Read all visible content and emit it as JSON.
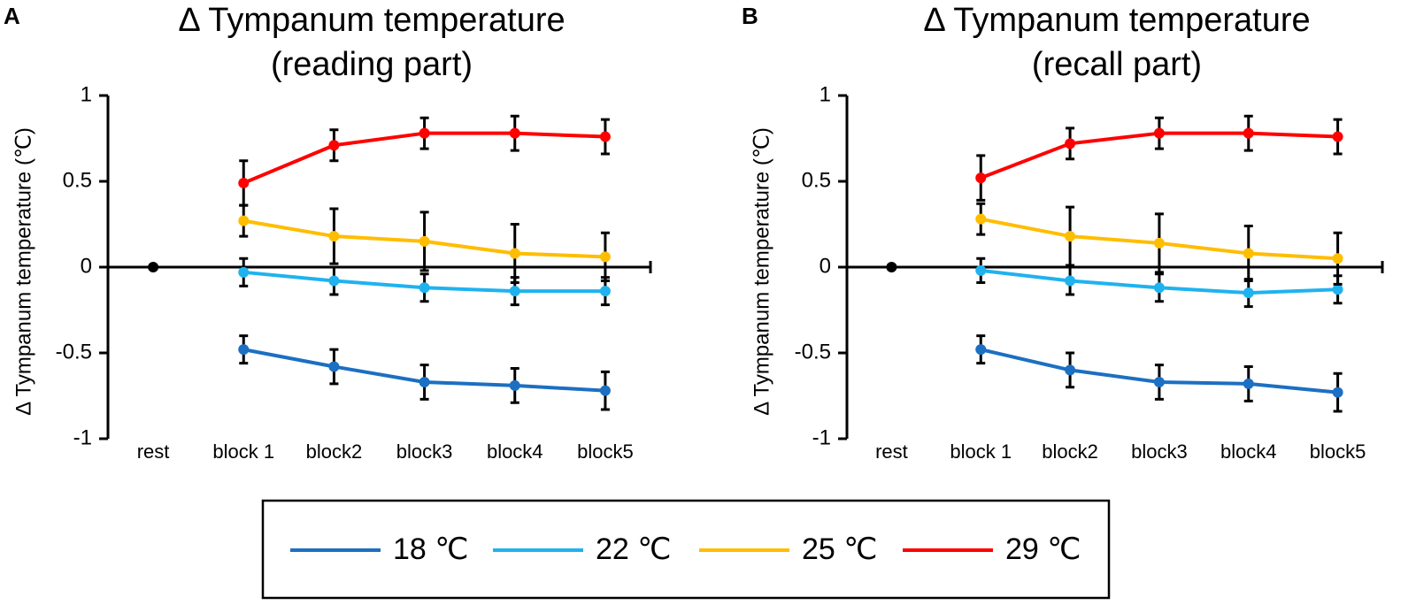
{
  "panel_labels": [
    "A",
    "B"
  ],
  "legend": [
    {
      "name": "18 ℃",
      "color": "#1c6fc2"
    },
    {
      "name": "22 ℃",
      "color": "#1fb2ef"
    },
    {
      "name": "25 ℃",
      "color": "#ffbd00"
    },
    {
      "name": "29 ℃",
      "color": "#ff0000"
    }
  ],
  "chart_data": [
    {
      "type": "line",
      "title": [
        "Δ Tympanum temperature",
        "(reading part)"
      ],
      "y_label": "Δ Tympanum temperature (℃)",
      "categories": [
        "rest",
        "block 1",
        "block2",
        "block3",
        "block4",
        "block5"
      ],
      "rest_value": 0,
      "ylim": [
        -1,
        1
      ],
      "yticks": [
        -1,
        -0.5,
        0,
        0.5,
        1
      ],
      "series": [
        {
          "values": [
            null,
            -0.48,
            -0.58,
            -0.67,
            -0.69,
            -0.72
          ],
          "errors": [
            null,
            0.08,
            0.1,
            0.1,
            0.1,
            0.11
          ]
        },
        {
          "values": [
            null,
            -0.03,
            -0.08,
            -0.12,
            -0.14,
            -0.14
          ],
          "errors": [
            null,
            0.08,
            0.08,
            0.08,
            0.08,
            0.08
          ]
        },
        {
          "values": [
            null,
            0.27,
            0.18,
            0.15,
            0.08,
            0.06
          ],
          "errors": [
            null,
            0.09,
            0.16,
            0.17,
            0.17,
            0.14
          ]
        },
        {
          "values": [
            null,
            0.49,
            0.71,
            0.78,
            0.78,
            0.76
          ],
          "errors": [
            null,
            0.13,
            0.09,
            0.09,
            0.1,
            0.1
          ]
        }
      ]
    },
    {
      "type": "line",
      "title": [
        "Δ Tympanum temperature",
        "(recall part)"
      ],
      "y_label": "Δ Tympanum temperature (℃)",
      "categories": [
        "rest",
        "block 1",
        "block2",
        "block3",
        "block4",
        "block5"
      ],
      "rest_value": 0,
      "ylim": [
        -1,
        1
      ],
      "yticks": [
        -1,
        -0.5,
        0,
        0.5,
        1
      ],
      "series": [
        {
          "values": [
            null,
            -0.48,
            -0.6,
            -0.67,
            -0.68,
            -0.73
          ],
          "errors": [
            null,
            0.08,
            0.1,
            0.1,
            0.1,
            0.11
          ]
        },
        {
          "values": [
            null,
            -0.02,
            -0.08,
            -0.12,
            -0.15,
            -0.13
          ],
          "errors": [
            null,
            0.07,
            0.08,
            0.08,
            0.08,
            0.08
          ]
        },
        {
          "values": [
            null,
            0.28,
            0.18,
            0.14,
            0.08,
            0.05
          ],
          "errors": [
            null,
            0.09,
            0.17,
            0.17,
            0.16,
            0.15
          ]
        },
        {
          "values": [
            null,
            0.52,
            0.72,
            0.78,
            0.78,
            0.76
          ],
          "errors": [
            null,
            0.13,
            0.09,
            0.09,
            0.1,
            0.1
          ]
        }
      ]
    }
  ]
}
